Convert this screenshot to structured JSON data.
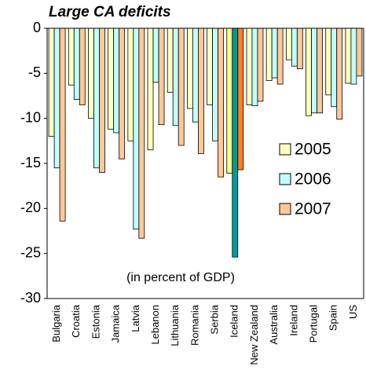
{
  "chart_data": {
    "type": "bar",
    "title": "Large CA deficits",
    "annotation": "(in percent of GDP)",
    "categories": [
      "Bulgaria",
      "Croatia",
      "Estonia",
      "Jamaica",
      "Latvia",
      "Lebanon",
      "Lithuania",
      "Romania",
      "Serbia",
      "Iceland",
      "New Zealand",
      "Australia",
      "Ireland",
      "Portugal",
      "Spain",
      "US"
    ],
    "series": [
      {
        "name": "2005",
        "color": "#ffffc0",
        "highlight_color": "#ffff80",
        "values": [
          -12,
          -6.3,
          -10,
          -11.2,
          -12.5,
          -13.5,
          -7.1,
          -8.9,
          -8.5,
          -16.1,
          -8.5,
          -5.8,
          -3.5,
          -9.7,
          -7.4,
          -6.1
        ]
      },
      {
        "name": "2006",
        "color": "#c0ffff",
        "highlight_color": "#009999",
        "values": [
          -15.5,
          -7.9,
          -15.5,
          -11.6,
          -22.3,
          -6,
          -10.8,
          -10.4,
          -12.5,
          -25.4,
          -8.6,
          -5.5,
          -4.2,
          -9.4,
          -8.7,
          -6.2
        ]
      },
      {
        "name": "2007",
        "color": "#ffc896",
        "highlight_color": "#ff7f27",
        "values": [
          -21.4,
          -8.5,
          -16,
          -14.5,
          -23.3,
          -10.7,
          -13,
          -13.9,
          -16.5,
          -15.7,
          -8.1,
          -6.2,
          -4.5,
          -9.4,
          -10.1,
          -5.3
        ]
      }
    ],
    "highlight_category": "Iceland",
    "ylim": [
      -30,
      0
    ],
    "yticks": [
      0,
      -5,
      -10,
      -15,
      -20,
      -25,
      -30
    ],
    "legend": "right"
  }
}
